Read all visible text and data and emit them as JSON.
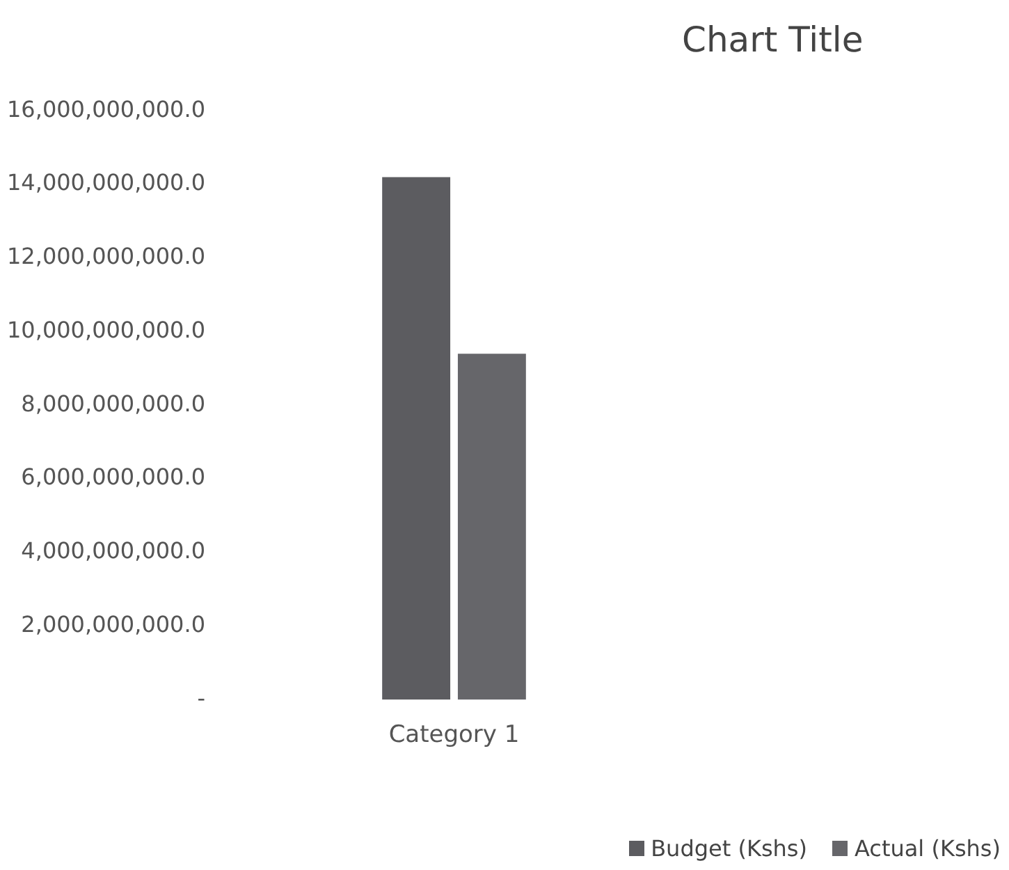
{
  "chart_data": {
    "type": "bar",
    "title": "Chart Title",
    "categories": [
      "Category 1"
    ],
    "series": [
      {
        "name": "Budget (Kshs)",
        "color": "#5c5c60",
        "values": [
          14200000000
        ]
      },
      {
        "name": "Actual (Kshs)",
        "color": "#66666a",
        "values": [
          9400000000
        ]
      }
    ],
    "ylim": [
      0,
      16000000000
    ],
    "yticks": [
      {
        "value": 0,
        "label": "-"
      },
      {
        "value": 2000000000,
        "label": "2,000,000,000.0"
      },
      {
        "value": 4000000000,
        "label": "4,000,000,000.0"
      },
      {
        "value": 6000000000,
        "label": "6,000,000,000.0"
      },
      {
        "value": 8000000000,
        "label": "8,000,000,000.0"
      },
      {
        "value": 10000000000,
        "label": "10,000,000,000.0"
      },
      {
        "value": 12000000000,
        "label": "12,000,000,000.0"
      },
      {
        "value": 14000000000,
        "label": "14,000,000,000.0"
      },
      {
        "value": 16000000000,
        "label": "16,000,000,000.0"
      }
    ],
    "grid": false,
    "legend": "bottom right"
  }
}
